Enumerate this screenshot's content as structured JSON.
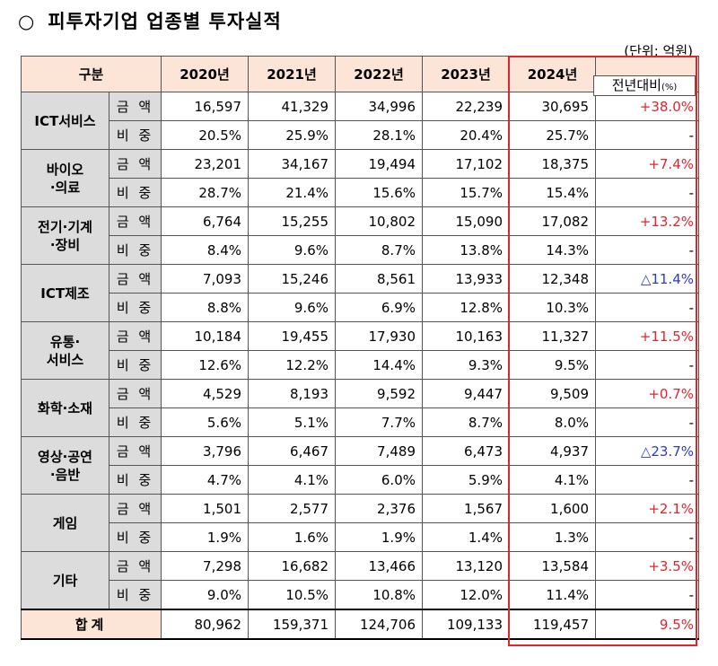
{
  "title": {
    "bullet": "○",
    "text": "피투자기업 업종별 투자실적"
  },
  "unit": "(단위: 억원)",
  "header": {
    "category": "구분",
    "years": [
      "2020년",
      "2021년",
      "2022년",
      "2023년",
      "2024년"
    ],
    "change_label": "전년대비",
    "change_unit": "(%)"
  },
  "sub_labels": {
    "amount": "금 액",
    "share": "비 중"
  },
  "rows": [
    {
      "category": "ICT서비스",
      "amount": [
        "16,597",
        "41,329",
        "34,996",
        "22,239",
        "30,695"
      ],
      "change": "+38.0%",
      "change_dir": "up",
      "share": [
        "20.5%",
        "25.9%",
        "28.1%",
        "20.4%",
        "25.7%"
      ],
      "share_change": "-"
    },
    {
      "category": "바이오\n·의료",
      "amount": [
        "23,201",
        "34,167",
        "19,494",
        "17,102",
        "18,375"
      ],
      "change": "+7.4%",
      "change_dir": "up",
      "share": [
        "28.7%",
        "21.4%",
        "15.6%",
        "15.7%",
        "15.4%"
      ],
      "share_change": "-"
    },
    {
      "category": "전기·기계\n·장비",
      "amount": [
        "6,764",
        "15,255",
        "10,802",
        "15,090",
        "17,082"
      ],
      "change": "+13.2%",
      "change_dir": "up",
      "share": [
        "8.4%",
        "9.6%",
        "8.7%",
        "13.8%",
        "14.3%"
      ],
      "share_change": "-"
    },
    {
      "category": "ICT제조",
      "amount": [
        "7,093",
        "15,246",
        "8,561",
        "13,933",
        "12,348"
      ],
      "change": "△11.4%",
      "change_dir": "down",
      "share": [
        "8.8%",
        "9.6%",
        "6.9%",
        "12.8%",
        "10.3%"
      ],
      "share_change": "-"
    },
    {
      "category": "유통·\n서비스",
      "amount": [
        "10,184",
        "19,455",
        "17,930",
        "10,163",
        "11,327"
      ],
      "change": "+11.5%",
      "change_dir": "up",
      "share": [
        "12.6%",
        "12.2%",
        "14.4%",
        "9.3%",
        "9.5%"
      ],
      "share_change": "-"
    },
    {
      "category": "화학·소재",
      "amount": [
        "4,529",
        "8,193",
        "9,592",
        "9,447",
        "9,509"
      ],
      "change": "+0.7%",
      "change_dir": "up",
      "share": [
        "5.6%",
        "5.1%",
        "7.7%",
        "8.7%",
        "8.0%"
      ],
      "share_change": "-"
    },
    {
      "category": "영상·공연\n·음반",
      "amount": [
        "3,796",
        "6,467",
        "7,489",
        "6,473",
        "4,937"
      ],
      "change": "△23.7%",
      "change_dir": "down",
      "share": [
        "4.7%",
        "4.1%",
        "6.0%",
        "5.9%",
        "4.1%"
      ],
      "share_change": "-"
    },
    {
      "category": "게임",
      "amount": [
        "1,501",
        "2,577",
        "2,376",
        "1,567",
        "1,600"
      ],
      "change": "+2.1%",
      "change_dir": "up",
      "share": [
        "1.9%",
        "1.6%",
        "1.9%",
        "1.4%",
        "1.3%"
      ],
      "share_change": "-"
    },
    {
      "category": "기타",
      "amount": [
        "7,298",
        "16,682",
        "13,466",
        "13,120",
        "13,584"
      ],
      "change": "+3.5%",
      "change_dir": "up",
      "share": [
        "9.0%",
        "10.5%",
        "10.8%",
        "12.0%",
        "11.4%"
      ],
      "share_change": "-"
    }
  ],
  "total": {
    "label": "합계",
    "values": [
      "80,962",
      "159,371",
      "124,706",
      "109,133",
      "119,457"
    ],
    "change": "9.5%"
  }
}
